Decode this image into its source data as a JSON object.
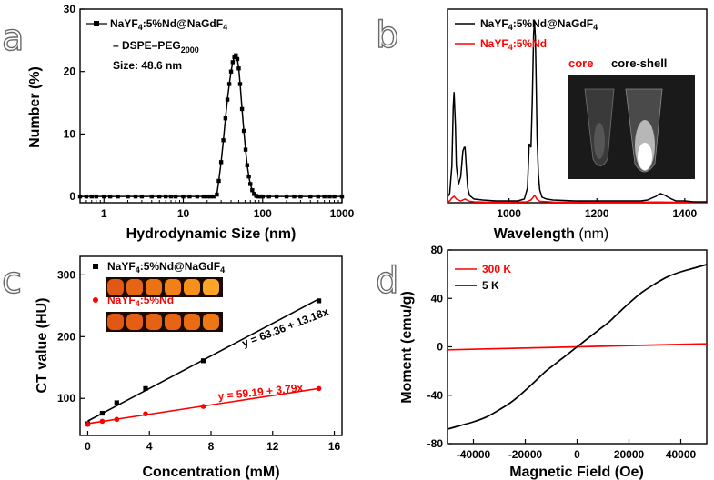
{
  "chart_data": [
    {
      "panel": "a",
      "type": "line",
      "xlabel": "Hydrodynamic Size (nm)",
      "ylabel": "Number (%)",
      "xscale": "log",
      "xlim": [
        0.5,
        1000
      ],
      "ylim": [
        -1,
        30
      ],
      "xticks": [
        1,
        10,
        100,
        1000
      ],
      "xtick_labels": [
        "1",
        "10",
        "100",
        "1000"
      ],
      "yticks": [
        0,
        10,
        20,
        30
      ],
      "ytick_labels": [
        "0",
        "10",
        "20",
        "30"
      ],
      "legend_lines": [
        "NaYF4:5%Nd@NaGdF4",
        "– DSPE–PEG2000"
      ],
      "annotation": "Size: 48.6 nm",
      "series": [
        {
          "name": "NaYF4:5%Nd@NaGdF4 – DSPE–PEG2000",
          "color": "#000000",
          "marker": "square",
          "x": [
            0.5,
            0.6,
            0.7,
            0.8,
            1,
            1.2,
            1.5,
            2,
            2.5,
            3,
            4,
            5,
            6,
            7,
            8,
            10,
            12,
            15,
            18,
            20,
            22,
            24,
            26.5,
            28,
            30,
            32,
            34,
            36,
            38,
            40,
            42,
            44,
            46,
            48,
            50,
            52,
            55,
            58,
            61,
            64,
            67,
            70,
            74,
            78,
            83,
            88,
            95,
            100,
            120,
            150,
            200,
            250,
            300,
            400,
            500,
            600,
            700,
            800,
            1000
          ],
          "y": [
            0,
            0,
            0,
            0,
            0,
            0,
            0,
            0,
            0,
            0,
            0,
            0,
            0,
            0,
            0,
            0,
            0,
            0,
            0,
            0,
            0,
            0,
            0.3,
            2.5,
            5.5,
            9,
            12.5,
            15.5,
            18,
            20,
            21.5,
            22.3,
            22.6,
            22,
            20.5,
            18,
            14,
            10.5,
            7.5,
            5,
            3.2,
            2,
            1,
            0.4,
            0.1,
            0,
            0,
            0,
            0,
            0,
            0,
            0,
            0,
            0,
            0,
            0,
            0,
            0,
            0
          ]
        }
      ]
    },
    {
      "panel": "b",
      "type": "line",
      "xlabel": "Wavelength",
      "xlabel_unit": "(nm)",
      "ylabel": "",
      "xlim": [
        860,
        1450
      ],
      "ylim": [
        0,
        1.05
      ],
      "xticks": [
        1000,
        1200,
        1400
      ],
      "xtick_labels": [
        "1000",
        "1200",
        "1400"
      ],
      "series": [
        {
          "name": "NaYF4:5%Nd@NaGdF4",
          "color": "#000000",
          "x": [
            860,
            865,
            870,
            873,
            875,
            878,
            880,
            885,
            890,
            895,
            898,
            900,
            903,
            906,
            910,
            920,
            940,
            970,
            1000,
            1020,
            1035,
            1042,
            1046,
            1050,
            1053,
            1056,
            1058,
            1060,
            1062,
            1064,
            1067,
            1070,
            1075,
            1085,
            1100,
            1150,
            1200,
            1250,
            1300,
            1315,
            1325,
            1335,
            1340,
            1345,
            1350,
            1355,
            1362,
            1370,
            1380,
            1400,
            1420,
            1440,
            1450
          ],
          "y": [
            0.03,
            0.05,
            0.2,
            0.52,
            0.6,
            0.42,
            0.2,
            0.1,
            0.14,
            0.28,
            0.3,
            0.3,
            0.18,
            0.08,
            0.04,
            0.02,
            0.015,
            0.01,
            0.01,
            0.01,
            0.02,
            0.08,
            0.32,
            0.3,
            0.55,
            0.92,
            0.98,
            0.9,
            0.62,
            0.35,
            0.15,
            0.07,
            0.03,
            0.02,
            0.015,
            0.01,
            0.01,
            0.01,
            0.01,
            0.015,
            0.025,
            0.035,
            0.045,
            0.05,
            0.045,
            0.04,
            0.03,
            0.02,
            0.01,
            0.01,
            0.005,
            0.005,
            0.005
          ]
        },
        {
          "name": "NaYF4:5%Nd",
          "color": "#ff0000",
          "x": [
            860,
            865,
            870,
            875,
            880,
            890,
            900,
            910,
            920,
            950,
            1000,
            1040,
            1050,
            1055,
            1058,
            1060,
            1063,
            1070,
            1100,
            1200,
            1300,
            1340,
            1360,
            1400,
            1450
          ],
          "y": [
            0.005,
            0.01,
            0.025,
            0.035,
            0.02,
            0.01,
            0.02,
            0.008,
            0.005,
            0.003,
            0.003,
            0.005,
            0.015,
            0.03,
            0.04,
            0.035,
            0.02,
            0.008,
            0.004,
            0.003,
            0.003,
            0.004,
            0.003,
            0.002,
            0.002
          ]
        }
      ],
      "inset": {
        "label_core": "core",
        "label_core_shell": "core-shell",
        "core_color": "#ff0000"
      }
    },
    {
      "panel": "c",
      "type": "scatter",
      "xlabel": "Concentration (mM)",
      "ylabel": "CT value (HU)",
      "xlim": [
        -0.5,
        16.5
      ],
      "ylim": [
        40,
        330
      ],
      "xticks": [
        0,
        4,
        8,
        12,
        16
      ],
      "xtick_labels": [
        "0",
        "4",
        "8",
        "12",
        "16"
      ],
      "yticks": [
        100,
        200,
        300
      ],
      "ytick_labels": [
        "100",
        "200",
        "300"
      ],
      "series": [
        {
          "name": "NaYF4:5%Nd@NaGdF4",
          "color": "#000000",
          "marker": "square",
          "x": [
            0,
            0.94,
            1.88,
            3.75,
            7.5,
            15
          ],
          "y": [
            59,
            76,
            93,
            116,
            161,
            258
          ],
          "fit": {
            "intercept": 63.36,
            "slope": 13.18
          },
          "fit_label": "y = 63.36 + 13.18x",
          "phantom_brightness": [
            0.45,
            0.55,
            0.65,
            0.75,
            0.85,
            1.0
          ]
        },
        {
          "name": "NaYF4:5%Nd",
          "color": "#ff0000",
          "marker": "circle",
          "x": [
            0,
            0.94,
            1.88,
            3.75,
            7.5,
            15
          ],
          "y": [
            58,
            63,
            66,
            75,
            87,
            116
          ],
          "fit": {
            "intercept": 59.19,
            "slope": 3.79
          },
          "fit_label": "y = 59.19 + 3.79x",
          "phantom_brightness": [
            0.45,
            0.5,
            0.52,
            0.55,
            0.6,
            0.68
          ]
        }
      ]
    },
    {
      "panel": "d",
      "type": "line",
      "xlabel": "Magnetic Field (Oe)",
      "ylabel": "Moment (emu/g)",
      "xlim": [
        -50000,
        50000
      ],
      "ylim": [
        -80,
        80
      ],
      "xticks": [
        -40000,
        -20000,
        0,
        20000,
        40000
      ],
      "xtick_labels": [
        "-40000",
        "-20000",
        "0",
        "20000",
        "40000"
      ],
      "yticks": [
        -80,
        -40,
        0,
        40,
        80
      ],
      "ytick_labels": [
        "-80",
        "-40",
        "0",
        "40",
        "80"
      ],
      "series": [
        {
          "name": "300 K",
          "color": "#ff0000",
          "x": [
            -50000,
            50000
          ],
          "y": [
            -2.5,
            2.5
          ]
        },
        {
          "name": "5 K",
          "color": "#000000",
          "x": [
            -50000,
            -45000,
            -40000,
            -35000,
            -30000,
            -25000,
            -20000,
            -15000,
            -12000,
            -9000,
            -6000,
            -3000,
            0,
            3000,
            6000,
            9000,
            12000,
            15000,
            20000,
            25000,
            30000,
            35000,
            40000,
            45000,
            50000
          ],
          "y": [
            -68,
            -65,
            -62,
            -58,
            -52,
            -45,
            -36,
            -26,
            -20,
            -15,
            -10,
            -5,
            0,
            5,
            10,
            15,
            20,
            26,
            36,
            45,
            52,
            58,
            62,
            65,
            68
          ]
        }
      ]
    }
  ],
  "panel_letters": [
    "a",
    "b",
    "c",
    "d"
  ]
}
